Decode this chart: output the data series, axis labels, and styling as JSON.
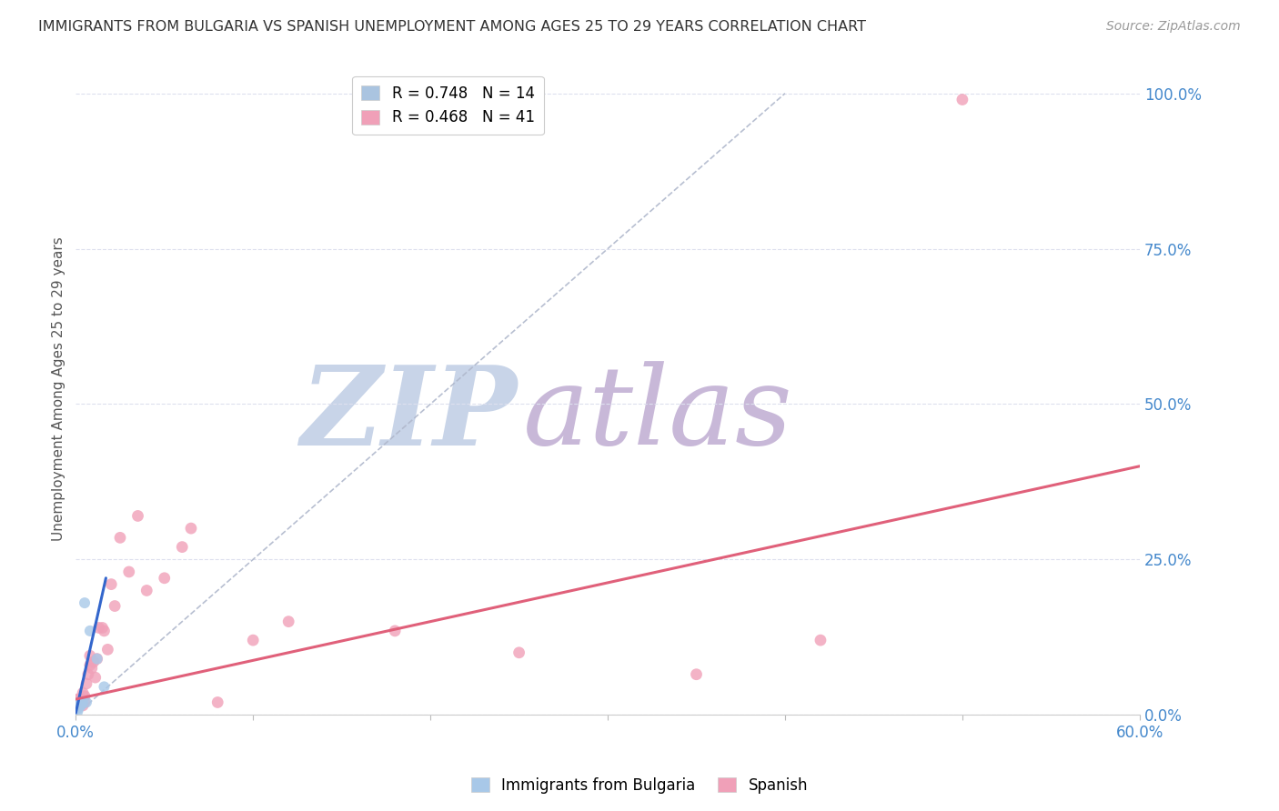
{
  "title": "IMMIGRANTS FROM BULGARIA VS SPANISH UNEMPLOYMENT AMONG AGES 25 TO 29 YEARS CORRELATION CHART",
  "source": "Source: ZipAtlas.com",
  "ylabel_label": "Unemployment Among Ages 25 to 29 years",
  "xlim": [
    0.0,
    0.6
  ],
  "ylim": [
    0.0,
    1.05
  ],
  "legend_entries": [
    {
      "label": "R = 0.748   N = 14",
      "color": "#aac4e0"
    },
    {
      "label": "R = 0.468   N = 41",
      "color": "#f0a0b8"
    }
  ],
  "bulgaria_scatter": {
    "x": [
      0.0005,
      0.001,
      0.001,
      0.0015,
      0.002,
      0.002,
      0.003,
      0.003,
      0.004,
      0.005,
      0.006,
      0.008,
      0.012,
      0.016
    ],
    "y": [
      0.01,
      0.005,
      0.015,
      0.01,
      0.015,
      0.02,
      0.015,
      0.02,
      0.02,
      0.18,
      0.02,
      0.135,
      0.09,
      0.045
    ],
    "color": "#a8c8e8",
    "size": 75,
    "alpha": 0.8,
    "zorder": 4
  },
  "spanish_scatter": {
    "x": [
      0.0005,
      0.001,
      0.001,
      0.0015,
      0.002,
      0.002,
      0.003,
      0.003,
      0.004,
      0.004,
      0.005,
      0.005,
      0.006,
      0.007,
      0.008,
      0.008,
      0.009,
      0.01,
      0.011,
      0.012,
      0.013,
      0.015,
      0.016,
      0.018,
      0.02,
      0.022,
      0.025,
      0.03,
      0.035,
      0.04,
      0.05,
      0.06,
      0.065,
      0.08,
      0.1,
      0.12,
      0.18,
      0.25,
      0.35,
      0.42,
      0.5
    ],
    "y": [
      0.02,
      0.015,
      0.025,
      0.02,
      0.025,
      0.015,
      0.02,
      0.025,
      0.035,
      0.015,
      0.03,
      0.02,
      0.05,
      0.065,
      0.08,
      0.095,
      0.075,
      0.085,
      0.06,
      0.09,
      0.14,
      0.14,
      0.135,
      0.105,
      0.21,
      0.175,
      0.285,
      0.23,
      0.32,
      0.2,
      0.22,
      0.27,
      0.3,
      0.02,
      0.12,
      0.15,
      0.135,
      0.1,
      0.065,
      0.12,
      0.99
    ],
    "color": "#f0a0b8",
    "size": 85,
    "alpha": 0.8,
    "zorder": 3
  },
  "bulgaria_line": {
    "x_start": 0.0,
    "x_end": 0.017,
    "y_start": 0.003,
    "y_end": 0.22,
    "color": "#3366cc",
    "linewidth": 2.2
  },
  "spanish_line": {
    "x_start": 0.0,
    "x_end": 0.6,
    "y_start": 0.025,
    "y_end": 0.4,
    "color": "#e0607a",
    "linewidth": 2.2
  },
  "diagonal_line_x": [
    0.0,
    0.4
  ],
  "diagonal_line_y": [
    0.0,
    1.0
  ],
  "diagonal_color": "#b0b8cc",
  "diagonal_linewidth": 1.2,
  "diagonal_linestyle": "--",
  "watermark_zip_text": "ZIP",
  "watermark_atlas_text": "atlas",
  "watermark_zip_color": "#c8d4e8",
  "watermark_atlas_color": "#c8b8d8",
  "grid_color": "#dde0ee",
  "ytick_color": "#4488cc",
  "xtick_color": "#4488cc",
  "title_color": "#333333",
  "source_color": "#999999",
  "ytick_positions": [
    0.0,
    0.25,
    0.5,
    0.75,
    1.0
  ],
  "ytick_labels": [
    "0.0%",
    "25.0%",
    "50.0%",
    "75.0%",
    "100.0%"
  ],
  "xtick_positions": [
    0.0,
    0.1,
    0.2,
    0.3,
    0.4,
    0.5,
    0.6
  ],
  "xtick_labels": [
    "0.0%",
    "",
    "",
    "",
    "",
    "",
    "60.0%"
  ]
}
